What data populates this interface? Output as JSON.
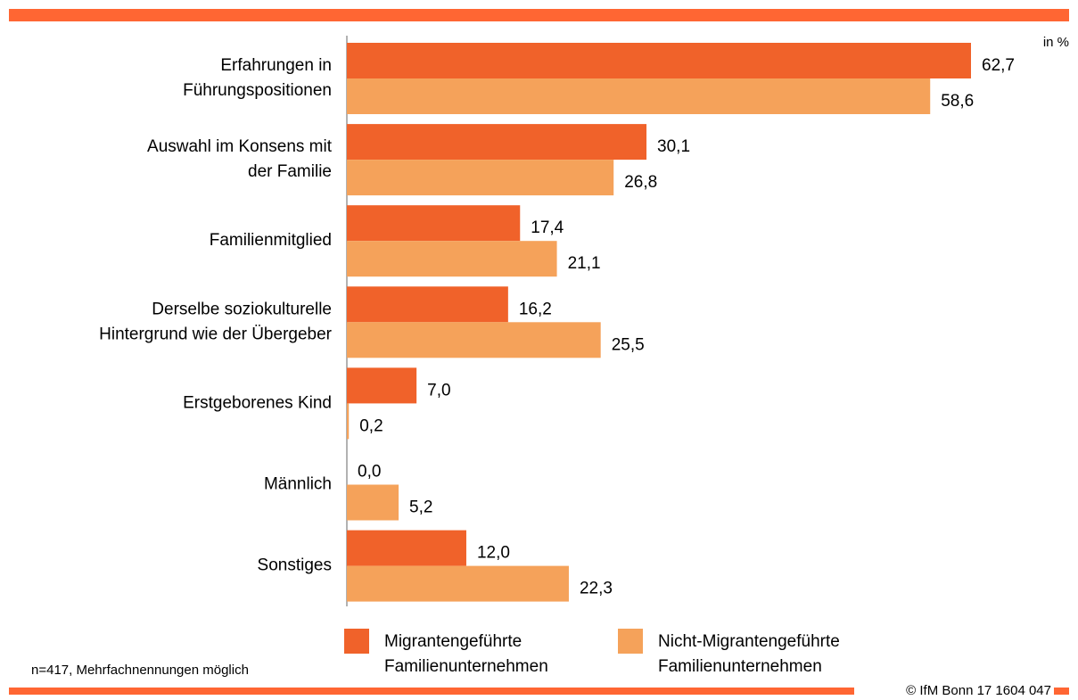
{
  "chart_data": {
    "type": "barh",
    "annotation": "in %",
    "footnote": "n=417, Mehrfachnennungen möglich",
    "source": "© IfM Bonn 17 1604 047",
    "categories": [
      [
        "Erfahrungen in",
        "Führungspositionen"
      ],
      [
        "Auswahl im Konsens mit",
        "der Familie"
      ],
      [
        "Familienmitglied"
      ],
      [
        "Derselbe soziokulturelle",
        "Hintergrund wie der Übergeber"
      ],
      [
        "Erstgeborenes Kind"
      ],
      [
        "Männlich"
      ],
      [
        "Sonstiges"
      ]
    ],
    "series": [
      {
        "name": [
          "Migrantengeführte",
          "Familienunternehmen"
        ],
        "color": "#f0622a",
        "values": [
          62.7,
          30.1,
          17.4,
          16.2,
          7.0,
          0.0,
          12.0
        ],
        "value_labels": [
          "62,7",
          "30,1",
          "17,4",
          "16,2",
          "7,0",
          "0,0",
          "12,0"
        ]
      },
      {
        "name": [
          "Nicht-Migrantengeführte",
          "Familienunternehmen"
        ],
        "color": "#f5a25a",
        "values": [
          58.6,
          26.8,
          21.1,
          25.5,
          0.2,
          5.2,
          22.3
        ],
        "value_labels": [
          "58,6",
          "26,8",
          "21,1",
          "25,5",
          "0,2",
          "5,2",
          "22,3"
        ]
      }
    ]
  }
}
